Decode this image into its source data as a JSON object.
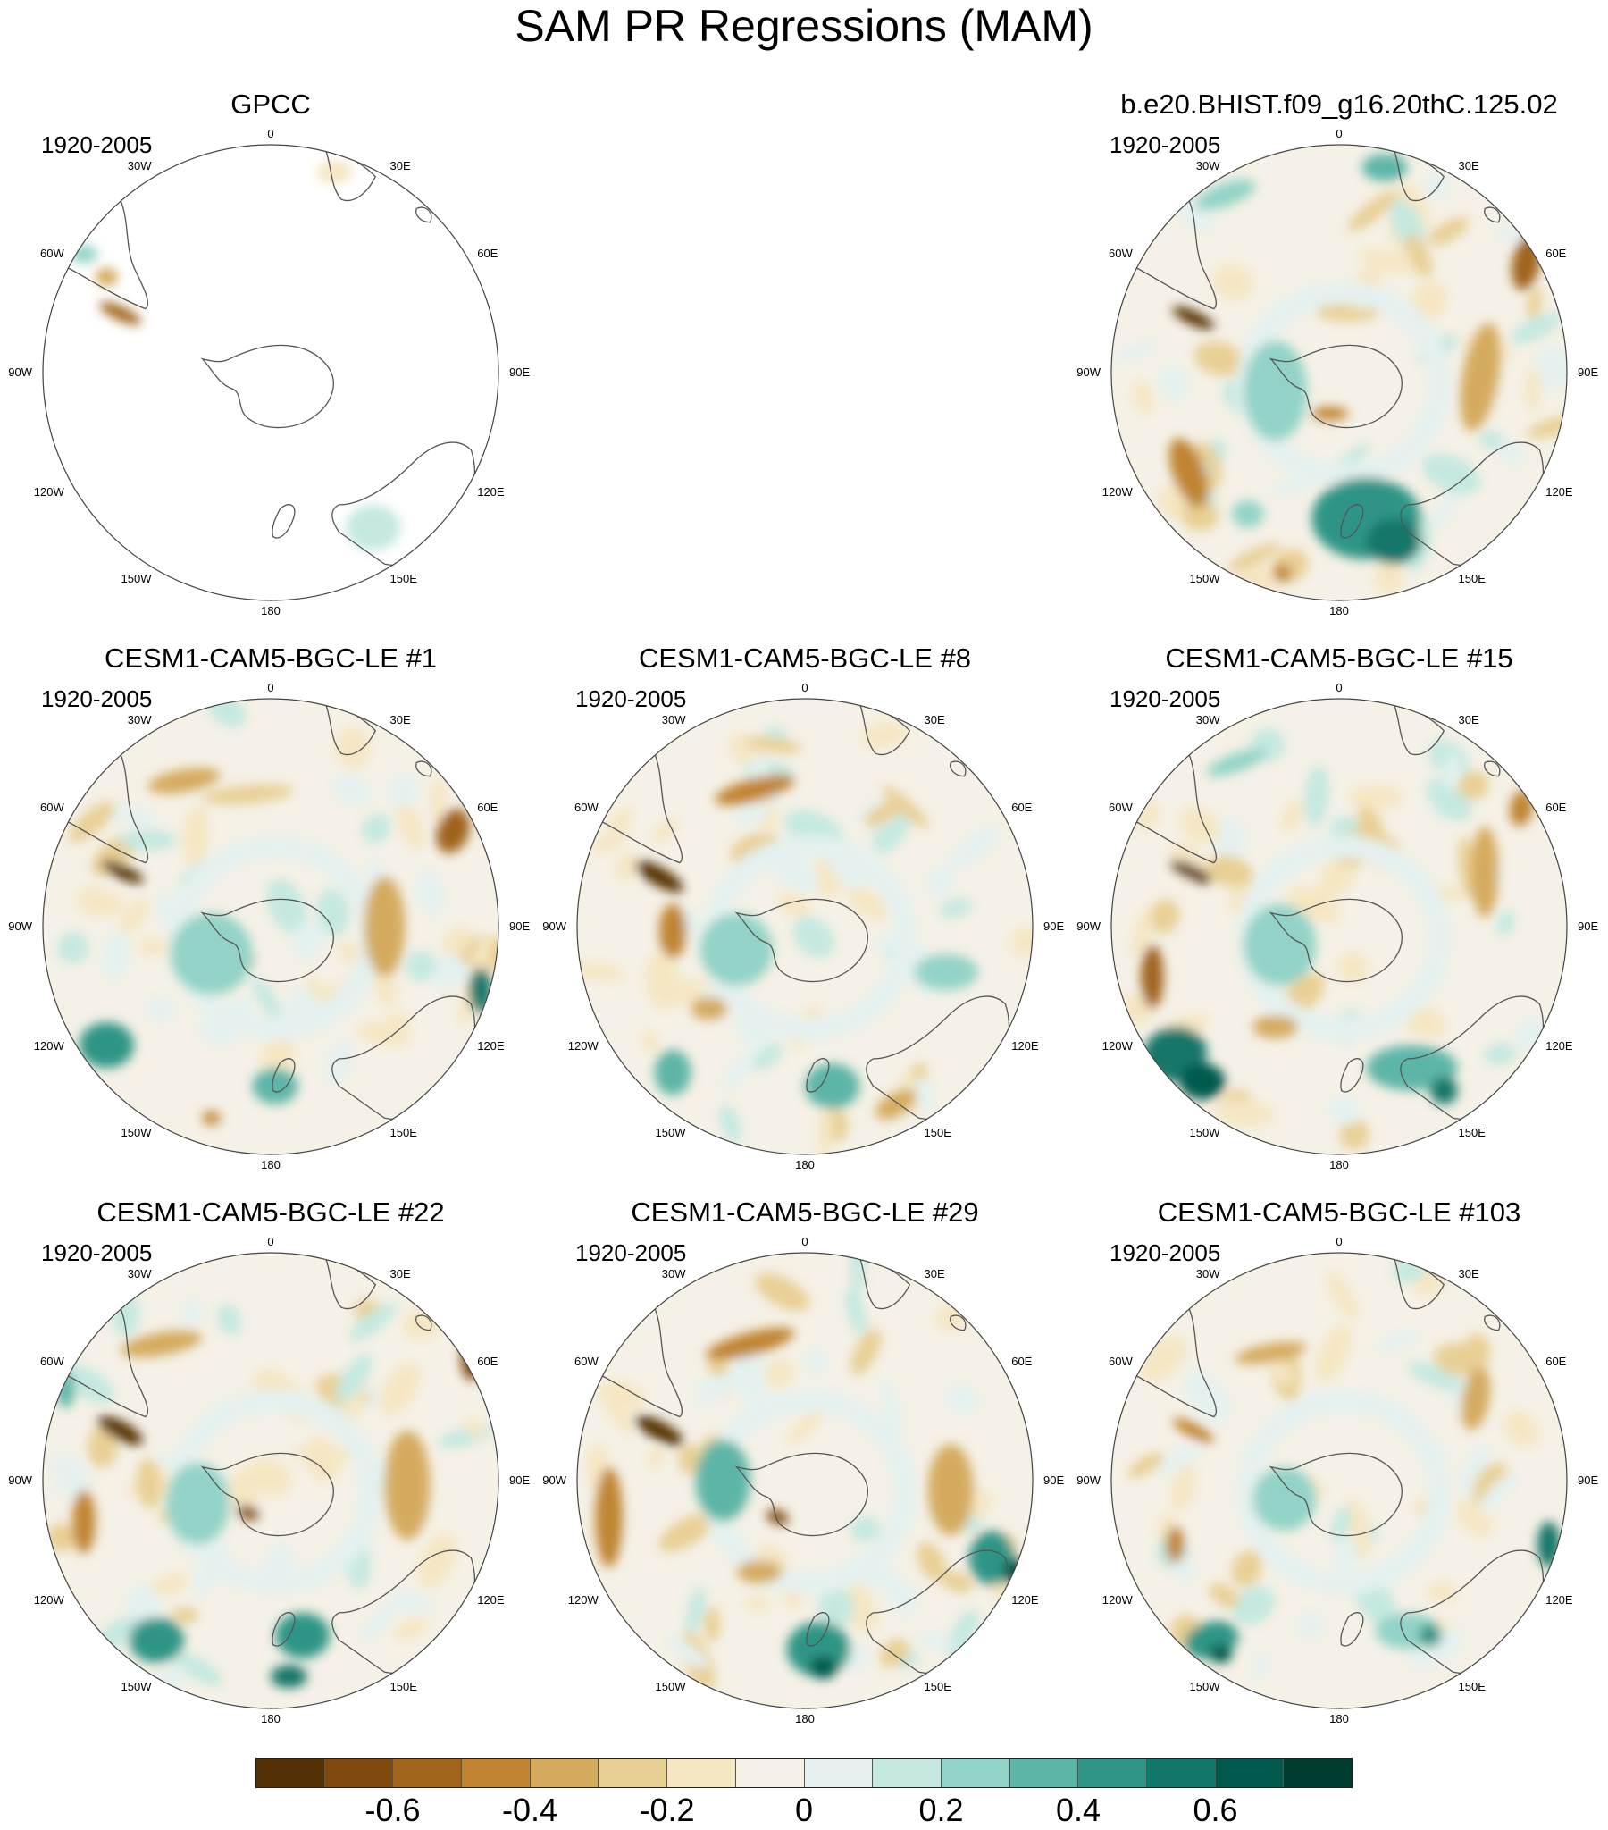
{
  "title": "SAM PR Regressions (MAM)",
  "lon_labels": [
    "0",
    "30E",
    "60E",
    "90E",
    "120E",
    "150E",
    "180",
    "150W",
    "120W",
    "90W",
    "60W",
    "30W"
  ],
  "panels": [
    {
      "title": "GPCC",
      "period": "1920-2005",
      "type": "observation"
    },
    {
      "title": "b.e20.BHIST.f09_g16.20thC.125.02",
      "period": "1920-2005",
      "type": "model"
    },
    {
      "title": "CESM1-CAM5-BGC-LE #1",
      "period": "1920-2005",
      "type": "model"
    },
    {
      "title": "CESM1-CAM5-BGC-LE #8",
      "period": "1920-2005",
      "type": "model"
    },
    {
      "title": "CESM1-CAM5-BGC-LE #15",
      "period": "1920-2005",
      "type": "model"
    },
    {
      "title": "CESM1-CAM5-BGC-LE #22",
      "period": "1920-2005",
      "type": "model"
    },
    {
      "title": "CESM1-CAM5-BGC-LE #29",
      "period": "1920-2005",
      "type": "model"
    },
    {
      "title": "CESM1-CAM5-BGC-LE #103",
      "period": "1920-2005",
      "type": "model"
    }
  ],
  "colorbar": {
    "colors": [
      "#543005",
      "#7e4a0f",
      "#a0641a",
      "#c08432",
      "#d4aa5e",
      "#e8cf94",
      "#f5e6c3",
      "#f5f1e6",
      "#e4f1ef",
      "#c4e8e0",
      "#93d3c7",
      "#5db5a7",
      "#2f9586",
      "#12766a",
      "#015a4d",
      "#003c30"
    ],
    "tick_labels": [
      "-0.6",
      "-0.4",
      "-0.2",
      "0",
      "0.2",
      "0.4",
      "0.6"
    ]
  }
}
